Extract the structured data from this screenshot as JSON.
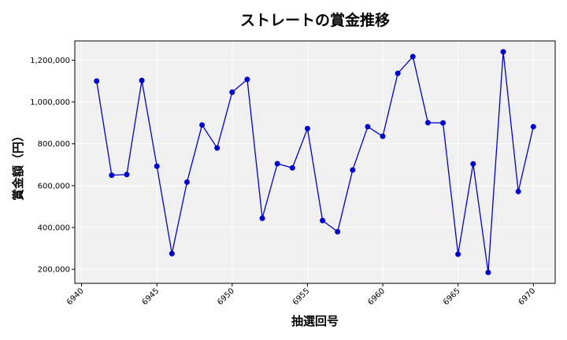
{
  "chart_data": {
    "type": "line",
    "title": "ストレートの賞金推移",
    "xlabel": "抽選回号",
    "ylabel": "賞金額（円）",
    "x": [
      6941,
      6942,
      6943,
      6944,
      6945,
      6946,
      6947,
      6948,
      6949,
      6950,
      6951,
      6952,
      6953,
      6954,
      6955,
      6956,
      6957,
      6958,
      6959,
      6960,
      6961,
      6962,
      6963,
      6964,
      6965,
      6966,
      6967,
      6968,
      6969,
      6970
    ],
    "series": [
      {
        "values": [
          1100000,
          650000,
          653000,
          1103000,
          693000,
          275000,
          617000,
          890000,
          780000,
          1047000,
          1108000,
          444000,
          705000,
          685000,
          873000,
          433000,
          380000,
          675000,
          882000,
          836000,
          1137000,
          1217000,
          901000,
          900000,
          272000,
          704000,
          185000,
          1240000,
          572000,
          882000
        ],
        "color": "#0000cc"
      }
    ],
    "xlim": [
      6939.55,
      6971.45
    ],
    "ylim": [
      133000,
      1292000
    ],
    "xticks": [
      6940,
      6945,
      6950,
      6955,
      6960,
      6965,
      6970
    ],
    "xtick_labels": [
      "6940",
      "6945",
      "6950",
      "6955",
      "6960",
      "6965",
      "6970"
    ],
    "yticks": [
      200000,
      400000,
      600000,
      800000,
      1000000,
      1200000
    ],
    "ytick_labels": [
      "200,000",
      "400,000",
      "600,000",
      "800,000",
      "1,000,000",
      "1,200,000"
    ],
    "grid": true,
    "background": "#f0f0f0"
  }
}
